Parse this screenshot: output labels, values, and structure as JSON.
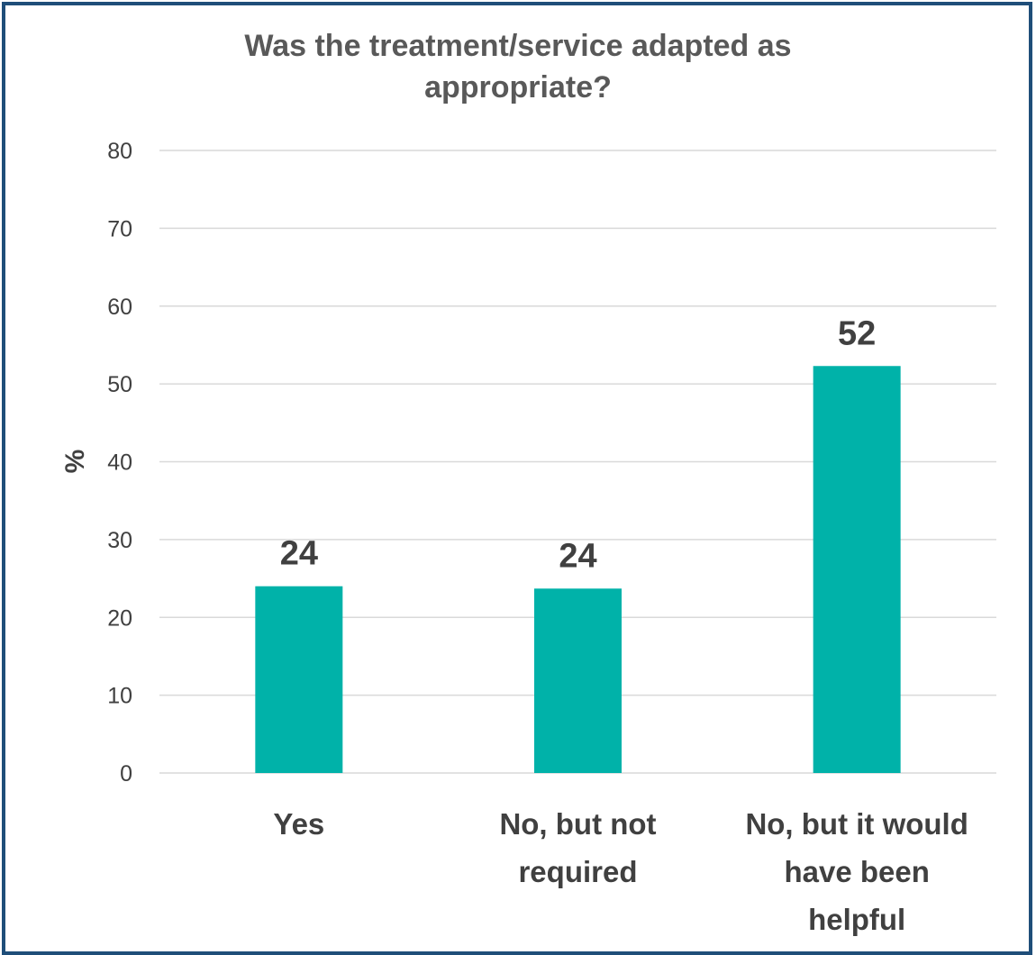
{
  "chart_data": {
    "type": "bar",
    "title": "Was the treatment/service adapted as appropriate?",
    "title_lines": [
      "Was the treatment/service adapted as",
      "appropriate?"
    ],
    "ylabel": "%",
    "xlabel": "",
    "ylim": [
      0,
      80
    ],
    "yticks": [
      0,
      10,
      20,
      30,
      40,
      50,
      60,
      70,
      80
    ],
    "grid": true,
    "legend": "none",
    "categories": [
      "Yes",
      "No, but not required",
      "No, but it would have been helpful"
    ],
    "category_lines": [
      [
        "Yes"
      ],
      [
        "No, but not",
        "required"
      ],
      [
        "No, but it would",
        "have been",
        "helpful"
      ]
    ],
    "values": [
      24,
      23.7,
      52.3
    ],
    "data_labels": [
      "24",
      "24",
      "52"
    ],
    "bar_color": "#00b2a9",
    "frame_color": "#1f4e79"
  }
}
